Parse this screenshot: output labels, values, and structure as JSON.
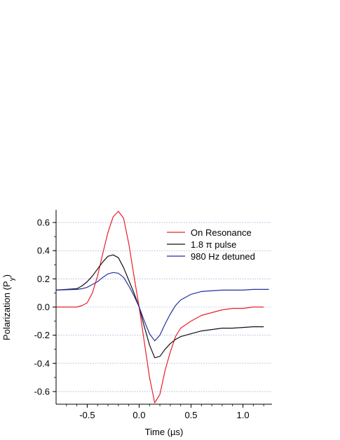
{
  "chart_data": {
    "type": "line",
    "title": "",
    "xlabel": "Time (µs)",
    "ylabel_main": "Polarization (P",
    "ylabel_sub": "y",
    "ylabel_close": ")",
    "xlim": [
      -0.8,
      1.28
    ],
    "ylim": [
      -0.69,
      0.69
    ],
    "x_ticks": [
      -0.5,
      0.0,
      0.5,
      1.0
    ],
    "x_tick_labels": [
      "-0.5",
      "0.0",
      "0.5",
      "1.0"
    ],
    "y_ticks": [
      0.6,
      0.4,
      0.2,
      0.0,
      -0.2,
      -0.4,
      -0.6
    ],
    "y_tick_labels": [
      "0.6",
      "0.4",
      "0.2",
      "0.0",
      "-0.2",
      "-0.4",
      "-0.6"
    ],
    "grid": "horizontal dotted",
    "legend_position": "top-right",
    "series": [
      {
        "name": "On Resonance",
        "color": "#e8202a",
        "x": [
          -0.8,
          -0.6,
          -0.55,
          -0.5,
          -0.45,
          -0.4,
          -0.35,
          -0.3,
          -0.25,
          -0.2,
          -0.15,
          -0.1,
          -0.05,
          0.0,
          0.05,
          0.1,
          0.15,
          0.2,
          0.25,
          0.3,
          0.35,
          0.4,
          0.5,
          0.6,
          0.7,
          0.8,
          0.9,
          1.0,
          1.1,
          1.2
        ],
        "y": [
          0.0,
          0.0,
          0.01,
          0.03,
          0.1,
          0.22,
          0.38,
          0.53,
          0.64,
          0.68,
          0.63,
          0.45,
          0.22,
          0.0,
          -0.25,
          -0.5,
          -0.68,
          -0.62,
          -0.45,
          -0.32,
          -0.21,
          -0.15,
          -0.1,
          -0.06,
          -0.04,
          -0.02,
          -0.01,
          -0.01,
          0.0,
          0.0
        ]
      },
      {
        "name": "1.8 π pulse",
        "color": "#111111",
        "x": [
          -0.8,
          -0.6,
          -0.55,
          -0.5,
          -0.45,
          -0.4,
          -0.35,
          -0.3,
          -0.25,
          -0.2,
          -0.15,
          -0.1,
          -0.05,
          0.0,
          0.05,
          0.1,
          0.15,
          0.2,
          0.25,
          0.3,
          0.35,
          0.4,
          0.5,
          0.6,
          0.7,
          0.8,
          0.9,
          1.0,
          1.1,
          1.2
        ],
        "y": [
          0.12,
          0.13,
          0.15,
          0.18,
          0.22,
          0.27,
          0.32,
          0.36,
          0.37,
          0.35,
          0.28,
          0.19,
          0.1,
          0.0,
          -0.14,
          -0.27,
          -0.36,
          -0.35,
          -0.3,
          -0.26,
          -0.23,
          -0.21,
          -0.19,
          -0.17,
          -0.16,
          -0.15,
          -0.15,
          -0.145,
          -0.14,
          -0.14
        ]
      },
      {
        "name": "980 Hz detuned",
        "color": "#2430a0",
        "x": [
          -0.8,
          -0.6,
          -0.55,
          -0.5,
          -0.45,
          -0.4,
          -0.35,
          -0.3,
          -0.25,
          -0.2,
          -0.15,
          -0.1,
          -0.05,
          0.0,
          0.05,
          0.1,
          0.15,
          0.2,
          0.25,
          0.3,
          0.35,
          0.4,
          0.5,
          0.6,
          0.7,
          0.8,
          0.9,
          1.0,
          1.1,
          1.25
        ],
        "y": [
          0.12,
          0.125,
          0.13,
          0.14,
          0.16,
          0.18,
          0.21,
          0.235,
          0.245,
          0.24,
          0.21,
          0.15,
          0.08,
          0.0,
          -0.1,
          -0.19,
          -0.24,
          -0.2,
          -0.12,
          -0.05,
          0.01,
          0.05,
          0.09,
          0.11,
          0.115,
          0.12,
          0.12,
          0.12,
          0.125,
          0.125
        ]
      }
    ]
  }
}
